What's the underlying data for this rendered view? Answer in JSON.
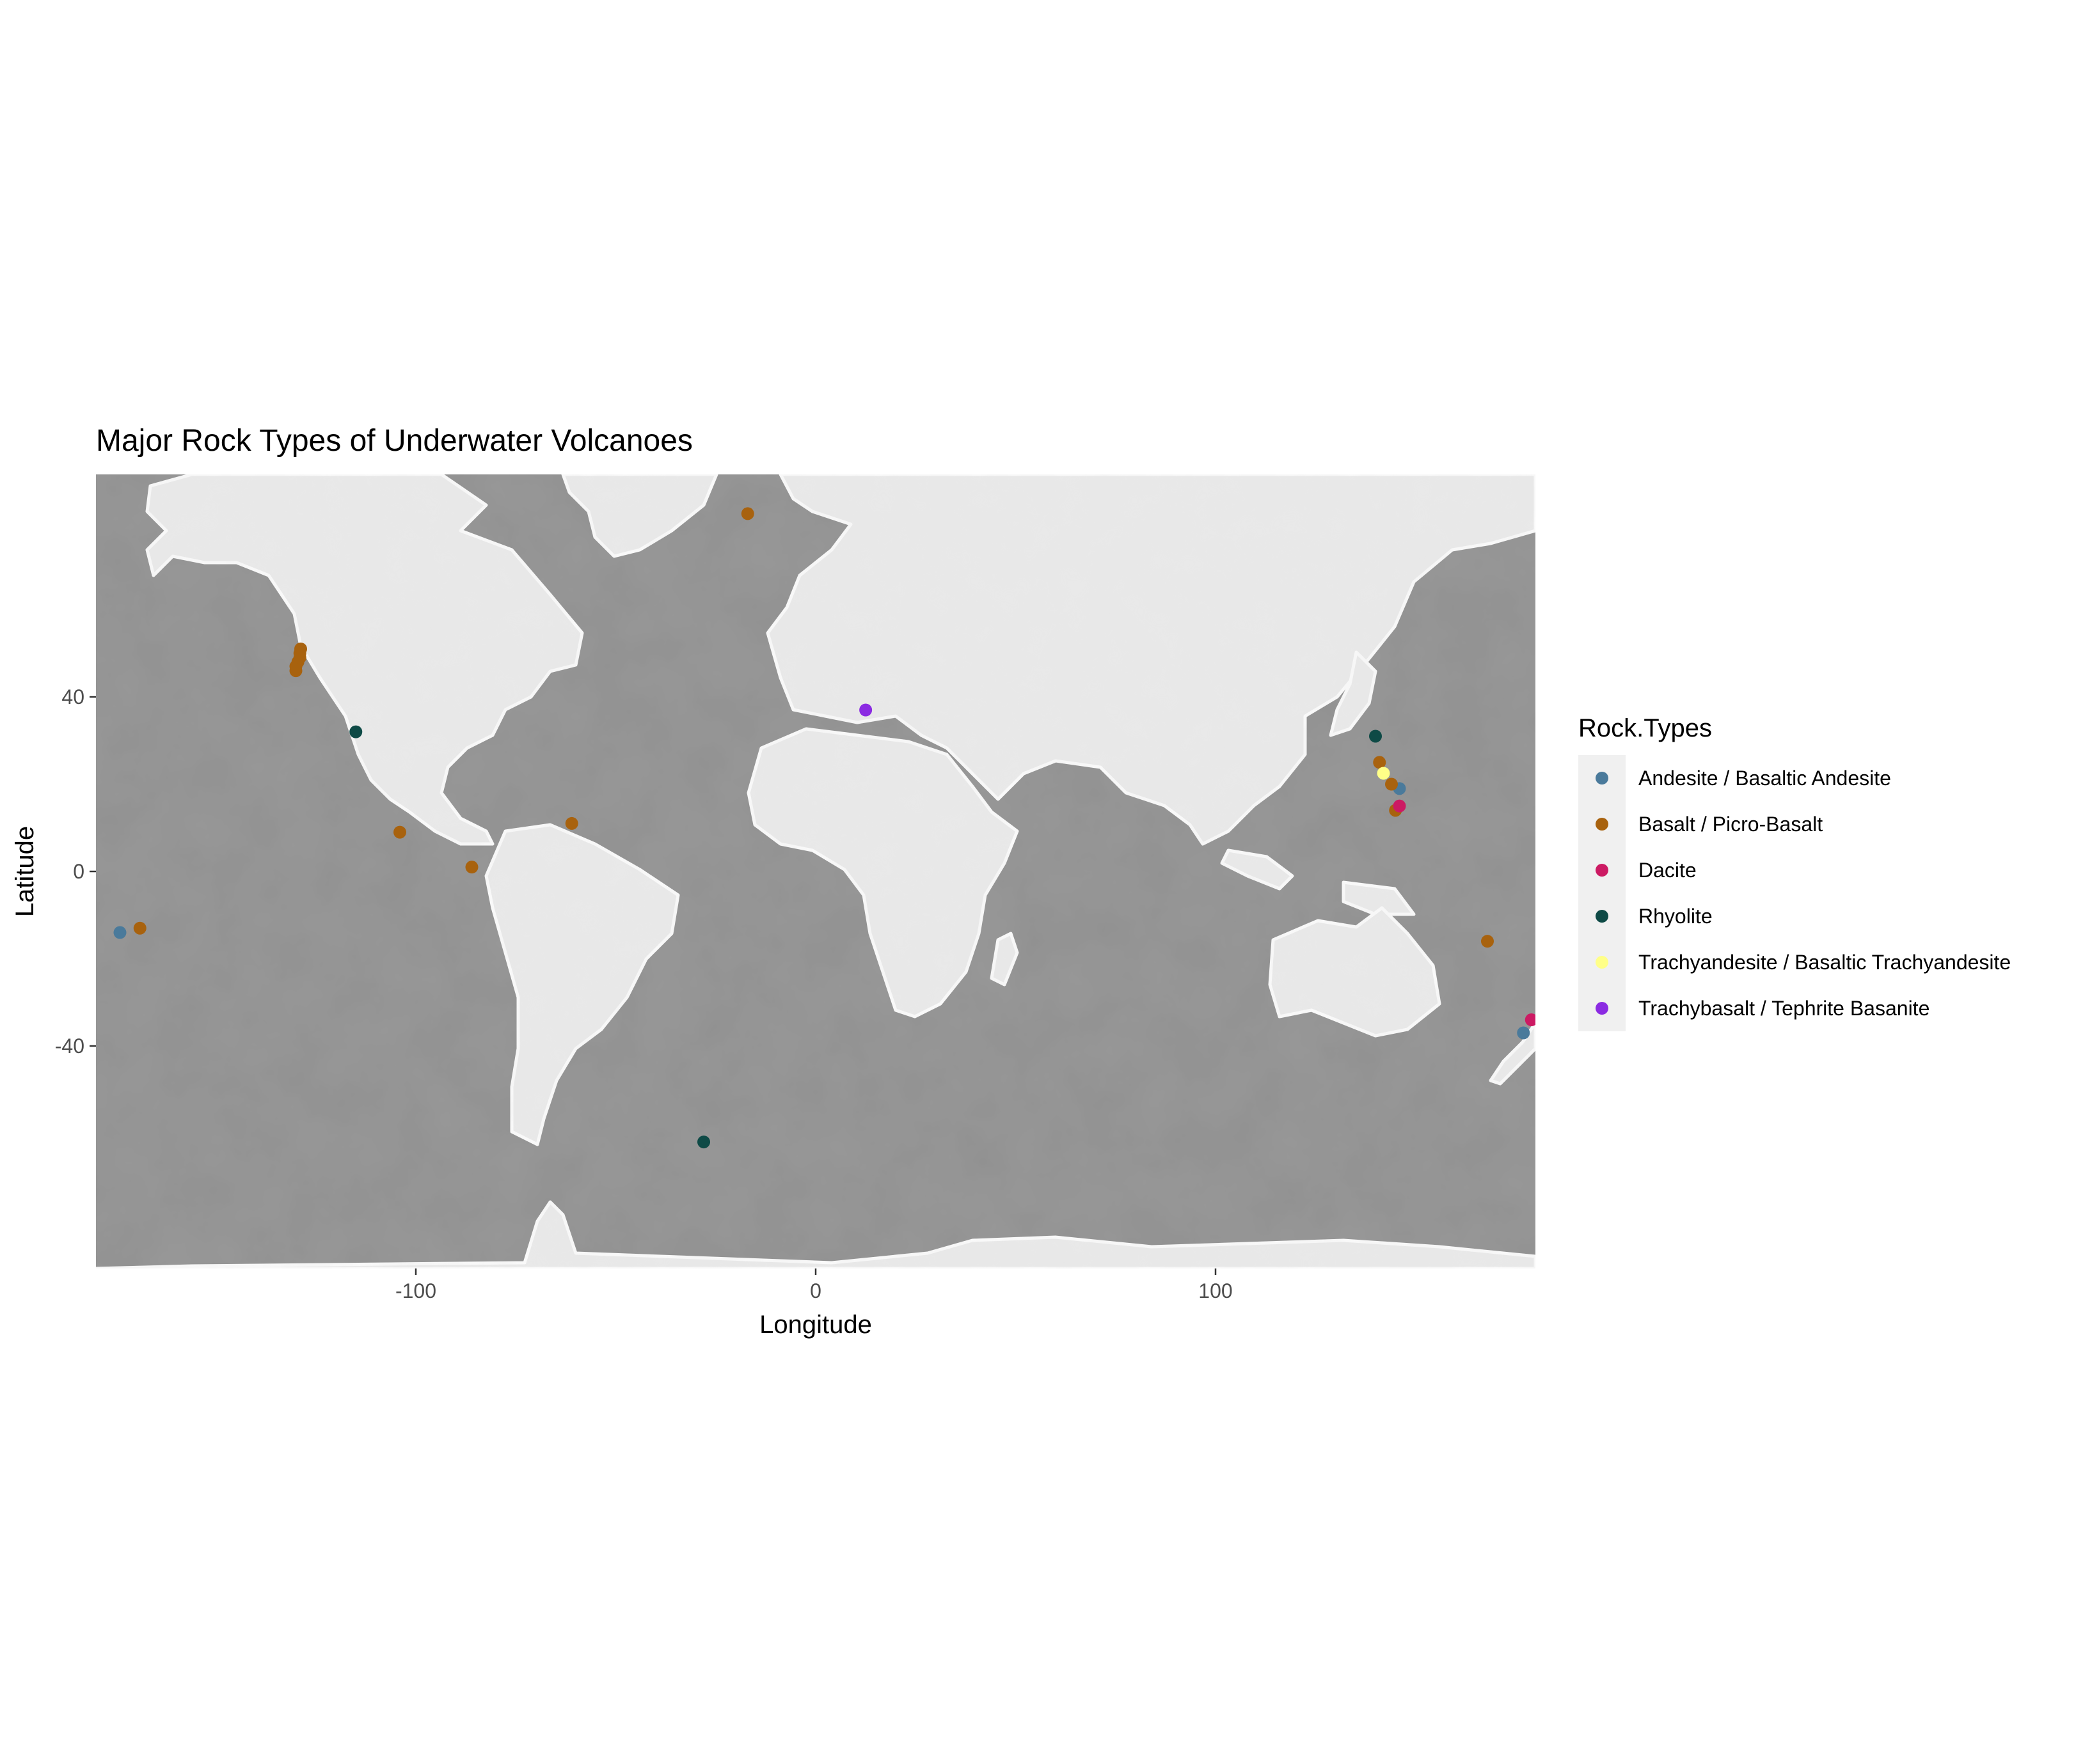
{
  "chart_data": {
    "type": "scatter",
    "title": "Major Rock Types of Underwater Volcanoes",
    "xlabel": "Longitude",
    "ylabel": "Latitude",
    "xlim": [
      -180,
      180
    ],
    "ylim": [
      -91,
      91
    ],
    "x_ticks": [
      -100,
      0,
      100
    ],
    "y_ticks": [
      -40,
      0,
      40
    ],
    "grid": false,
    "background": "grayscale watercolor world map",
    "legend": {
      "title": "Rock.Types",
      "position": "right"
    },
    "series": [
      {
        "name": "Andesite / Basaltic Andesite",
        "color": "#4a7a9b",
        "points": [
          [
            -174,
            -14
          ],
          [
            146,
            19
          ],
          [
            177,
            -37
          ]
        ]
      },
      {
        "name": "Basalt / Picro-Basalt",
        "color": "#a8620e",
        "points": [
          [
            -130,
            46
          ],
          [
            -130,
            47
          ],
          [
            -129.5,
            48
          ],
          [
            -129,
            49
          ],
          [
            -129,
            50
          ],
          [
            -128.8,
            51
          ],
          [
            -169,
            -13
          ],
          [
            -104,
            9
          ],
          [
            -86,
            1
          ],
          [
            -61,
            11
          ],
          [
            -17,
            82
          ],
          [
            141,
            25
          ],
          [
            144,
            20
          ],
          [
            145,
            14
          ],
          [
            168,
            -16
          ]
        ]
      },
      {
        "name": "Dacite",
        "color": "#cc1a63",
        "points": [
          [
            146,
            15
          ],
          [
            179,
            -34
          ]
        ]
      },
      {
        "name": "Rhyolite",
        "color": "#0e4a46",
        "points": [
          [
            -115,
            32
          ],
          [
            140,
            31
          ],
          [
            -28,
            -62
          ]
        ]
      },
      {
        "name": "Trachyandesite / Basaltic Trachyandesite",
        "color": "#ffff88",
        "points": [
          [
            142,
            22.5
          ]
        ]
      },
      {
        "name": "Trachybasalt / Tephrite Basanite",
        "color": "#8b2be2",
        "points": [
          [
            12.5,
            37
          ]
        ]
      }
    ]
  }
}
